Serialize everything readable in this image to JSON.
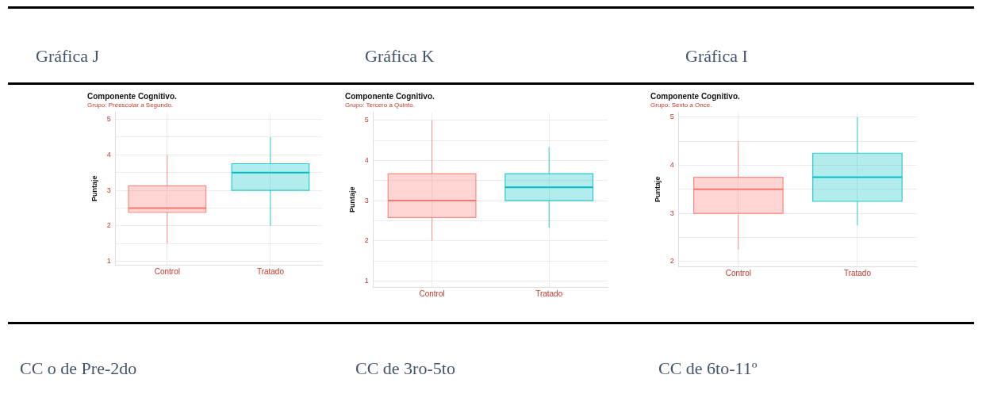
{
  "chart_data": [
    {
      "type": "box",
      "title": "Componente Cognitivo.",
      "subtitle": "Grupo: Preescolar a Segundo.",
      "ylabel": "Puntaje",
      "categories": [
        "Control",
        "Tratado"
      ],
      "colors": [
        "#f8766d",
        "#00bfc4"
      ],
      "boxes": [
        {
          "low": 1.5,
          "q1": 2.375,
          "median": 2.5,
          "q3": 3.125,
          "high": 4
        },
        {
          "low": 2,
          "q1": 3,
          "median": 3.5,
          "q3": 3.75,
          "high": 4.5
        }
      ],
      "ylim": [
        0.9,
        5.2
      ],
      "yticks": [
        1,
        {
          "value": 1.5,
          "label": null
        },
        2,
        {
          "value": 2.5,
          "label": null
        },
        3,
        {
          "value": 3.5,
          "label": null
        },
        4,
        {
          "value": 4.5,
          "label": null
        },
        5
      ],
      "grid": true,
      "annotations": [
        "Gráfica J",
        "CC o de Pre-2do"
      ]
    },
    {
      "type": "box",
      "title": "Componente Cognitivo.",
      "subtitle": "Grupo: Tercero a Quinto.",
      "ylabel": "Puntaje",
      "categories": [
        "Control",
        "Tratado"
      ],
      "colors": [
        "#f8766d",
        "#00bfc4"
      ],
      "boxes": [
        {
          "low": 2,
          "q1": 2.58,
          "median": 3,
          "q3": 3.67,
          "high": 5
        },
        {
          "low": 2.33,
          "q1": 3,
          "median": 3.33,
          "q3": 3.67,
          "high": 4.33
        }
      ],
      "ylim": [
        0.85,
        5.2
      ],
      "yticks": [
        1,
        {
          "value": 1.5,
          "label": null
        },
        2,
        {
          "value": 2.5,
          "label": null
        },
        3,
        {
          "value": 3.5,
          "label": null
        },
        4,
        {
          "value": 4.5,
          "label": null
        },
        5
      ],
      "grid": true,
      "annotations": [
        "Gráfica K",
        "CC de 3ro-5to"
      ]
    },
    {
      "type": "box",
      "title": "Componente Cognitivo.",
      "subtitle": "Grupo: Sexto a Once.",
      "ylabel": "Puntaje",
      "categories": [
        "Control",
        "Tratado"
      ],
      "colors": [
        "#f8766d",
        "#00bfc4"
      ],
      "boxes": [
        {
          "low": 2.25,
          "q1": 3,
          "median": 3.5,
          "q3": 3.75,
          "high": 4.5
        },
        {
          "low": 2.75,
          "q1": 3.25,
          "median": 3.75,
          "q3": 4.25,
          "high": 5
        }
      ],
      "ylim": [
        1.9,
        5.1
      ],
      "yticks": [
        2,
        {
          "value": 2.5,
          "label": null
        },
        3,
        {
          "value": 3.5,
          "label": null
        },
        4,
        {
          "value": 4.5,
          "label": null
        },
        5
      ],
      "grid": true,
      "annotations": [
        "Gráfica I",
        "CC de 6to-11º"
      ]
    }
  ]
}
